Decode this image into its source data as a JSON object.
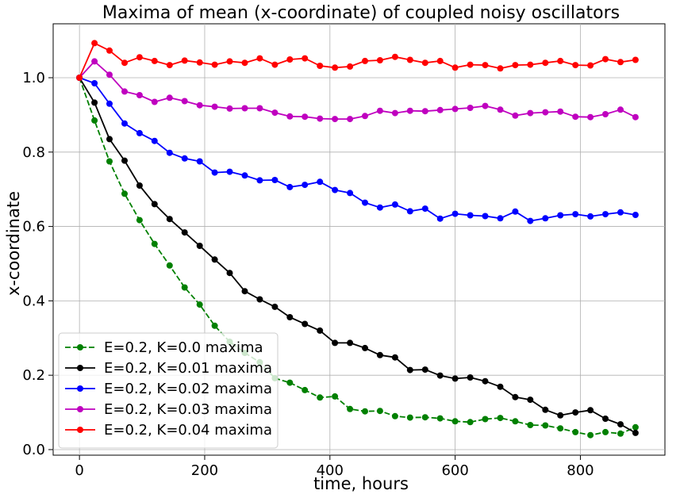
{
  "chart_data": {
    "type": "line",
    "title": "Maxima of mean (x-coordinate) of coupled noisy oscillators",
    "xlabel": "time, hours",
    "ylabel": "x-coordinate",
    "xlim": [
      -42,
      935
    ],
    "ylim": [
      -0.015,
      1.145
    ],
    "xticks": [
      0,
      200,
      400,
      600,
      800
    ],
    "yticks": [
      0.0,
      0.2,
      0.4,
      0.6,
      0.8,
      1.0
    ],
    "xtick_labels": [
      "0",
      "200",
      "400",
      "600",
      "800"
    ],
    "ytick_labels": [
      "0.0",
      "0.2",
      "0.4",
      "0.6",
      "0.8",
      "1.0"
    ],
    "grid": true,
    "legend_position": "lower-left",
    "x": [
      0,
      24,
      48,
      72,
      96,
      120,
      144,
      168,
      192,
      216,
      240,
      264,
      288,
      312,
      336,
      360,
      384,
      408,
      432,
      456,
      480,
      504,
      528,
      552,
      576,
      600,
      624,
      648,
      672,
      696,
      720,
      744,
      768,
      792,
      816,
      840,
      864,
      888
    ],
    "series": [
      {
        "name": "E=0.2, K=0.0 maxima",
        "color": "#008000",
        "dashed": true,
        "values": [
          1.0,
          0.885,
          0.775,
          0.688,
          0.617,
          0.553,
          0.495,
          0.436,
          0.39,
          0.333,
          0.29,
          0.26,
          0.235,
          0.192,
          0.18,
          0.16,
          0.14,
          0.143,
          0.109,
          0.103,
          0.104,
          0.09,
          0.086,
          0.087,
          0.084,
          0.076,
          0.074,
          0.082,
          0.085,
          0.076,
          0.066,
          0.065,
          0.057,
          0.047,
          0.039,
          0.047,
          0.043,
          0.06
        ]
      },
      {
        "name": "E=0.2, K=0.01 maxima",
        "color": "#000000",
        "dashed": false,
        "values": [
          1.0,
          0.933,
          0.835,
          0.777,
          0.71,
          0.66,
          0.62,
          0.584,
          0.548,
          0.511,
          0.475,
          0.426,
          0.404,
          0.384,
          0.356,
          0.338,
          0.32,
          0.287,
          0.287,
          0.273,
          0.254,
          0.248,
          0.214,
          0.215,
          0.199,
          0.191,
          0.194,
          0.184,
          0.169,
          0.141,
          0.134,
          0.107,
          0.092,
          0.1,
          0.106,
          0.083,
          0.068,
          0.045
        ]
      },
      {
        "name": "E=0.2, K=0.02 maxima",
        "color": "#0000ff",
        "dashed": false,
        "values": [
          1.0,
          0.985,
          0.93,
          0.877,
          0.851,
          0.83,
          0.798,
          0.783,
          0.775,
          0.745,
          0.747,
          0.737,
          0.724,
          0.725,
          0.706,
          0.712,
          0.72,
          0.698,
          0.69,
          0.664,
          0.651,
          0.659,
          0.641,
          0.648,
          0.621,
          0.634,
          0.63,
          0.628,
          0.622,
          0.64,
          0.615,
          0.622,
          0.63,
          0.633,
          0.627,
          0.633,
          0.638,
          0.631
        ]
      },
      {
        "name": "E=0.2, K=0.03 maxima",
        "color": "#bf00bf",
        "dashed": false,
        "values": [
          1.0,
          1.044,
          1.008,
          0.963,
          0.953,
          0.935,
          0.946,
          0.937,
          0.926,
          0.922,
          0.917,
          0.918,
          0.918,
          0.906,
          0.896,
          0.895,
          0.89,
          0.889,
          0.889,
          0.897,
          0.911,
          0.905,
          0.911,
          0.91,
          0.913,
          0.916,
          0.919,
          0.924,
          0.914,
          0.898,
          0.905,
          0.907,
          0.909,
          0.895,
          0.894,
          0.902,
          0.914,
          0.894
        ]
      },
      {
        "name": "E=0.2, K=0.04 maxima",
        "color": "#ff0000",
        "dashed": false,
        "values": [
          1.0,
          1.093,
          1.073,
          1.04,
          1.055,
          1.045,
          1.034,
          1.046,
          1.041,
          1.035,
          1.044,
          1.04,
          1.052,
          1.035,
          1.049,
          1.052,
          1.032,
          1.027,
          1.03,
          1.045,
          1.047,
          1.056,
          1.048,
          1.04,
          1.045,
          1.027,
          1.035,
          1.034,
          1.025,
          1.034,
          1.035,
          1.04,
          1.045,
          1.034,
          1.033,
          1.05,
          1.042,
          1.048
        ]
      }
    ]
  }
}
